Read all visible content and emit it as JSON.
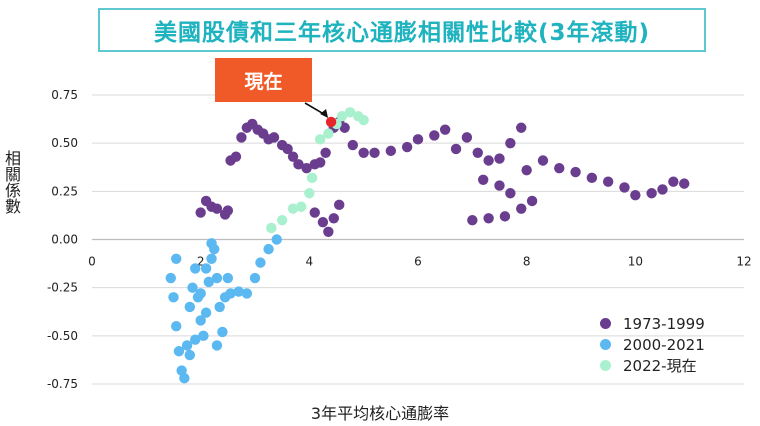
{
  "chart_data": {
    "type": "scatter",
    "title": "美國股債和三年核心通膨相關性比較(3年滾動)",
    "xlabel": "3年平均核心通膨率",
    "ylabel": "相關係數",
    "xlim": [
      0,
      12
    ],
    "ylim": [
      -0.75,
      0.75
    ],
    "x_ticks": [
      "0",
      "2",
      "4",
      "6",
      "8",
      "10",
      "12"
    ],
    "y_ticks": [
      "0.75",
      "0.50",
      "0.25",
      "0.00",
      "-0.25",
      "-0.50",
      "-0.75"
    ],
    "grid": "horizontal",
    "legend_position": "bottom-right",
    "annotation": {
      "text": "現在",
      "x": 4.4,
      "y": 0.61,
      "color": "#e8262a",
      "box_color": "#f05a28"
    },
    "series": [
      {
        "name": "1973-1999",
        "color": "#6a3d8f",
        "points": [
          [
            2.0,
            0.14
          ],
          [
            2.1,
            0.2
          ],
          [
            2.2,
            0.17
          ],
          [
            2.3,
            0.16
          ],
          [
            2.45,
            0.13
          ],
          [
            2.5,
            0.15
          ],
          [
            2.55,
            0.41
          ],
          [
            2.65,
            0.43
          ],
          [
            2.75,
            0.53
          ],
          [
            2.85,
            0.58
          ],
          [
            2.95,
            0.6
          ],
          [
            3.05,
            0.57
          ],
          [
            3.15,
            0.55
          ],
          [
            3.25,
            0.52
          ],
          [
            3.35,
            0.53
          ],
          [
            3.5,
            0.49
          ],
          [
            3.6,
            0.47
          ],
          [
            3.7,
            0.43
          ],
          [
            3.8,
            0.39
          ],
          [
            3.95,
            0.37
          ],
          [
            4.1,
            0.39
          ],
          [
            4.2,
            0.4
          ],
          [
            4.3,
            0.45
          ],
          [
            4.45,
            0.58
          ],
          [
            4.55,
            0.61
          ],
          [
            4.65,
            0.58
          ],
          [
            4.8,
            0.49
          ],
          [
            5.0,
            0.45
          ],
          [
            5.2,
            0.45
          ],
          [
            5.5,
            0.46
          ],
          [
            5.8,
            0.48
          ],
          [
            6.0,
            0.52
          ],
          [
            6.3,
            0.54
          ],
          [
            6.5,
            0.57
          ],
          [
            6.7,
            0.47
          ],
          [
            6.9,
            0.53
          ],
          [
            7.1,
            0.45
          ],
          [
            7.3,
            0.41
          ],
          [
            7.5,
            0.42
          ],
          [
            7.7,
            0.5
          ],
          [
            7.9,
            0.58
          ],
          [
            7.2,
            0.31
          ],
          [
            7.5,
            0.28
          ],
          [
            7.7,
            0.24
          ],
          [
            8.0,
            0.36
          ],
          [
            8.3,
            0.41
          ],
          [
            8.6,
            0.37
          ],
          [
            8.9,
            0.35
          ],
          [
            9.2,
            0.32
          ],
          [
            9.5,
            0.3
          ],
          [
            9.8,
            0.27
          ],
          [
            10.0,
            0.23
          ],
          [
            10.3,
            0.24
          ],
          [
            10.5,
            0.26
          ],
          [
            10.7,
            0.3
          ],
          [
            10.9,
            0.29
          ],
          [
            7.0,
            0.1
          ],
          [
            7.3,
            0.11
          ],
          [
            7.6,
            0.12
          ],
          [
            7.9,
            0.16
          ],
          [
            8.1,
            0.2
          ],
          [
            4.1,
            0.14
          ],
          [
            4.25,
            0.09
          ],
          [
            4.35,
            0.04
          ],
          [
            4.45,
            0.11
          ],
          [
            4.55,
            0.18
          ]
        ]
      },
      {
        "name": "2000-2021",
        "color": "#5bb8f0",
        "points": [
          [
            1.45,
            -0.2
          ],
          [
            1.5,
            -0.3
          ],
          [
            1.55,
            -0.45
          ],
          [
            1.6,
            -0.58
          ],
          [
            1.65,
            -0.68
          ],
          [
            1.7,
            -0.72
          ],
          [
            1.75,
            -0.55
          ],
          [
            1.8,
            -0.35
          ],
          [
            1.85,
            -0.25
          ],
          [
            1.9,
            -0.15
          ],
          [
            1.95,
            -0.3
          ],
          [
            2.0,
            -0.42
          ],
          [
            2.05,
            -0.5
          ],
          [
            2.1,
            -0.38
          ],
          [
            2.15,
            -0.22
          ],
          [
            2.2,
            -0.1
          ],
          [
            2.25,
            -0.05
          ],
          [
            2.3,
            -0.2
          ],
          [
            2.35,
            -0.35
          ],
          [
            2.4,
            -0.48
          ],
          [
            2.45,
            -0.3
          ],
          [
            2.5,
            -0.2
          ],
          [
            2.55,
            -0.28
          ],
          [
            2.7,
            -0.27
          ],
          [
            2.85,
            -0.28
          ],
          [
            3.0,
            -0.2
          ],
          [
            3.1,
            -0.12
          ],
          [
            3.25,
            -0.05
          ],
          [
            3.4,
            0.0
          ],
          [
            1.55,
            -0.1
          ],
          [
            1.8,
            -0.6
          ],
          [
            1.9,
            -0.52
          ],
          [
            2.0,
            -0.28
          ],
          [
            2.1,
            -0.15
          ],
          [
            2.2,
            -0.02
          ],
          [
            2.3,
            -0.55
          ]
        ]
      },
      {
        "name": "2022-現在",
        "color": "#a9f0cf",
        "points": [
          [
            3.3,
            0.06
          ],
          [
            3.5,
            0.1
          ],
          [
            3.7,
            0.16
          ],
          [
            3.85,
            0.17
          ],
          [
            4.0,
            0.24
          ],
          [
            4.05,
            0.32
          ],
          [
            4.2,
            0.52
          ],
          [
            4.35,
            0.55
          ],
          [
            4.5,
            0.6
          ],
          [
            4.6,
            0.64
          ],
          [
            4.75,
            0.66
          ],
          [
            4.9,
            0.64
          ],
          [
            5.0,
            0.62
          ]
        ]
      }
    ]
  }
}
